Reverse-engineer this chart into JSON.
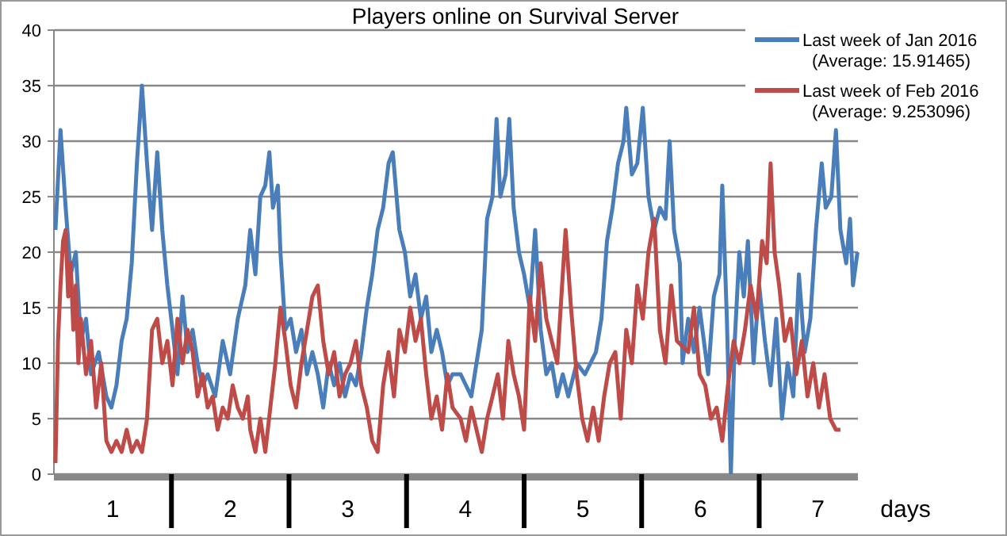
{
  "chart_data": {
    "type": "line",
    "title": "Players online on Survival Server",
    "xlabel": "days",
    "xlim": [
      0.5,
      7.34
    ],
    "ylim": [
      0,
      40
    ],
    "yticks": [
      0,
      5,
      10,
      15,
      20,
      25,
      30,
      35,
      40
    ],
    "xticks": [
      1,
      {
        "value": 1.5,
        "label": null
      },
      2,
      {
        "value": 2.5,
        "label": null
      },
      3,
      {
        "value": 3.5,
        "label": null
      },
      4,
      {
        "value": 4.5,
        "label": null
      },
      5,
      {
        "value": 5.5,
        "label": null
      },
      6,
      {
        "value": 6.5,
        "label": null
      },
      7
    ],
    "grid": "y",
    "legend": "top right",
    "marker": "none",
    "line_style": "solid",
    "annotations": [
      "(Average: 15.91465)",
      "(Average: 9.253096)"
    ],
    "series": [
      {
        "name": "Last week of Jan 2016",
        "color": "#4a7ebb",
        "x": [
          0.513,
          0.556,
          0.6,
          0.643,
          0.686,
          0.729,
          0.773,
          0.816,
          0.881,
          0.946,
          0.989,
          1.032,
          1.076,
          1.119,
          1.162,
          1.206,
          1.249,
          1.292,
          1.335,
          1.379,
          1.422,
          1.465,
          1.509,
          1.551,
          1.594,
          1.637,
          1.68,
          1.722,
          1.765,
          1.808,
          1.872,
          1.936,
          1.999,
          2.064,
          2.128,
          2.17,
          2.214,
          2.256,
          2.298,
          2.333,
          2.363,
          2.405,
          2.427,
          2.469,
          2.514,
          2.56,
          2.606,
          2.653,
          2.699,
          2.745,
          2.791,
          2.838,
          2.884,
          2.93,
          2.977,
          3.023,
          3.069,
          3.115,
          3.162,
          3.208,
          3.254,
          3.301,
          3.347,
          3.383,
          3.439,
          3.486,
          3.531,
          3.576,
          3.622,
          3.667,
          3.711,
          3.757,
          3.802,
          3.847,
          3.891,
          3.96,
          4.051,
          4.095,
          4.14,
          4.185,
          4.231,
          4.266,
          4.298,
          4.343,
          4.374,
          4.411,
          4.456,
          4.5,
          4.548,
          4.594,
          4.641,
          4.689,
          4.735,
          4.782,
          4.829,
          4.876,
          4.947,
          5.018,
          5.111,
          5.158,
          5.205,
          5.252,
          5.299,
          5.346,
          5.369,
          5.417,
          5.463,
          5.51,
          5.558,
          5.607,
          5.655,
          5.703,
          5.738,
          5.776,
          5.825,
          5.848,
          5.896,
          5.945,
          5.993,
          6.066,
          6.114,
          6.162,
          6.186,
          6.225,
          6.259,
          6.292,
          6.331,
          6.369,
          6.404,
          6.452,
          6.5,
          6.549,
          6.597,
          6.645,
          6.694,
          6.742,
          6.79,
          6.838,
          6.887,
          6.935,
          6.983,
          7.032,
          7.066,
          7.114,
          7.153,
          7.191,
          7.24,
          7.273,
          7.298,
          7.336
        ],
        "values": [
          22,
          31,
          24,
          18,
          20,
          12,
          14,
          9,
          11,
          7,
          6,
          8,
          12,
          14,
          19,
          28,
          35,
          28,
          22,
          29,
          22,
          17,
          13,
          9,
          16,
          11,
          13,
          10,
          8,
          9,
          7,
          12,
          9,
          14,
          17,
          22,
          18,
          25,
          26,
          29,
          24,
          26,
          20,
          13,
          14,
          11,
          13,
          9,
          11,
          9,
          6,
          10,
          8,
          10,
          7,
          9,
          8,
          11,
          15,
          18,
          22,
          24,
          28,
          29,
          22,
          20,
          16,
          18,
          14,
          16,
          11,
          13,
          11,
          8,
          9,
          9,
          7,
          10,
          13,
          23,
          25,
          32,
          25,
          27,
          32,
          24,
          20,
          18,
          15,
          22,
          13,
          9,
          10,
          7,
          9,
          7,
          10,
          9,
          11,
          14,
          21,
          24,
          28,
          30,
          33,
          27,
          28,
          33,
          25,
          22,
          24,
          23,
          30,
          22,
          19,
          10,
          14,
          11,
          15,
          9,
          16,
          18,
          26,
          14,
          0,
          12,
          20,
          16,
          21,
          10,
          17,
          12,
          8,
          14,
          5,
          10,
          7,
          18,
          11,
          14,
          22,
          28,
          24,
          25,
          31,
          22,
          19,
          23,
          17,
          20
        ]
      },
      {
        "name": "Last week of Feb 2016",
        "color": "#be4b48",
        "x": [
          0.513,
          0.535,
          0.556,
          0.578,
          0.6,
          0.621,
          0.643,
          0.665,
          0.686,
          0.708,
          0.729,
          0.773,
          0.816,
          0.859,
          0.903,
          0.946,
          0.989,
          1.032,
          1.076,
          1.119,
          1.162,
          1.206,
          1.249,
          1.292,
          1.335,
          1.379,
          1.422,
          1.465,
          1.509,
          1.551,
          1.594,
          1.637,
          1.68,
          1.722,
          1.765,
          1.808,
          1.85,
          1.893,
          1.936,
          1.979,
          2.021,
          2.064,
          2.107,
          2.149,
          2.17,
          2.214,
          2.256,
          2.298,
          2.341,
          2.384,
          2.427,
          2.469,
          2.514,
          2.56,
          2.606,
          2.653,
          2.699,
          2.745,
          2.791,
          2.838,
          2.884,
          2.93,
          2.977,
          3.023,
          3.069,
          3.115,
          3.162,
          3.208,
          3.254,
          3.301,
          3.347,
          3.393,
          3.439,
          3.486,
          3.531,
          3.576,
          3.622,
          3.667,
          3.711,
          3.757,
          3.802,
          3.847,
          3.891,
          3.96,
          4.005,
          4.051,
          4.095,
          4.14,
          4.185,
          4.231,
          4.276,
          4.32,
          4.366,
          4.411,
          4.456,
          4.5,
          4.548,
          4.594,
          4.641,
          4.689,
          4.735,
          4.782,
          4.829,
          4.853,
          4.899,
          4.947,
          4.994,
          5.04,
          5.088,
          5.135,
          5.181,
          5.228,
          5.276,
          5.322,
          5.369,
          5.417,
          5.463,
          5.51,
          5.558,
          5.607,
          5.655,
          5.703,
          5.752,
          5.8,
          5.896,
          5.945,
          5.993,
          6.041,
          6.089,
          6.138,
          6.186,
          6.234,
          6.283,
          6.331,
          6.379,
          6.427,
          6.477,
          6.525,
          6.564,
          6.597,
          6.631,
          6.67,
          6.718,
          6.766,
          6.815,
          6.863,
          6.911,
          6.96,
          7.008,
          7.056,
          7.104,
          7.153,
          7.191
        ],
        "values": [
          1,
          12,
          17,
          21,
          22,
          16,
          19,
          13,
          17,
          10,
          14,
          9,
          12,
          6,
          10,
          3,
          2,
          3,
          2,
          4,
          2,
          3,
          2,
          5,
          13,
          14,
          10,
          12,
          8,
          14,
          10,
          13,
          11,
          7,
          9,
          6,
          7,
          4,
          6,
          5,
          8,
          6,
          5,
          7,
          4,
          2,
          5,
          2,
          6,
          10,
          15,
          12,
          8,
          6,
          10,
          13,
          16,
          17,
          12,
          9,
          11,
          7,
          9,
          10,
          12,
          8,
          6,
          3,
          2,
          8,
          11,
          7,
          13,
          11,
          15,
          12,
          14,
          9,
          5,
          7,
          4,
          9,
          6,
          5,
          3,
          6,
          4,
          2,
          5,
          7,
          9,
          5,
          12,
          9,
          7,
          4,
          16,
          12,
          19,
          14,
          12,
          10,
          18,
          22,
          15,
          9,
          5,
          3,
          6,
          3,
          7,
          10,
          11,
          5,
          13,
          10,
          17,
          14,
          20,
          23,
          13,
          10,
          17,
          12,
          11,
          15,
          9,
          8,
          5,
          6,
          3,
          8,
          12,
          10,
          13,
          17,
          14,
          21,
          19,
          28,
          20,
          17,
          12,
          14,
          9,
          12,
          7,
          10,
          6,
          9,
          5,
          4,
          4
        ]
      }
    ]
  }
}
